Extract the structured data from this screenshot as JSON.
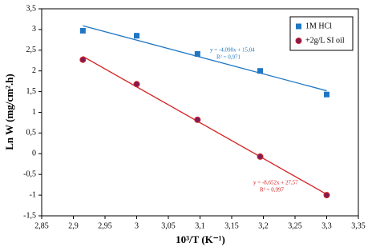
{
  "chart_data": {
    "type": "scatter",
    "x_label": "10³/T (K⁻¹)",
    "y_label": "Ln W (mg/cm².h)",
    "xlim": [
      2.85,
      3.35
    ],
    "xticks": [
      {
        "value": 2.85,
        "label": "2,85"
      },
      {
        "value": 2.9,
        "label": "2,9"
      },
      {
        "value": 2.95,
        "label": "2,95"
      },
      3,
      {
        "value": 3.05,
        "label": "3,05"
      },
      {
        "value": 3.1,
        "label": "3,1"
      },
      {
        "value": 3.15,
        "label": "3,15"
      },
      {
        "value": 3.2,
        "label": "3,2"
      },
      {
        "value": 3.25,
        "label": "3,25"
      },
      {
        "value": 3.3,
        "label": "3,3"
      },
      {
        "value": 3.35,
        "label": "3,35"
      }
    ],
    "ylim": [
      -1.5,
      3.5
    ],
    "yticks": [
      {
        "value": -1.5,
        "label": "-1,5"
      },
      -1,
      {
        "value": -0.5,
        "label": "-0,5"
      },
      0,
      {
        "value": 0.5,
        "label": "0,5"
      },
      1,
      {
        "value": 1.5,
        "label": "1,5"
      },
      2,
      {
        "value": 2.5,
        "label": "2,5"
      },
      3,
      {
        "value": 3.5,
        "label": "3,5"
      }
    ],
    "grid": false,
    "legend": "upper right",
    "series": [
      {
        "name": "1M HCl",
        "color": "#1f77c4",
        "marker": "square",
        "x": [
          2.915,
          3.0,
          3.096,
          3.195,
          3.3
        ],
        "values": [
          2.97,
          2.85,
          2.41,
          2.0,
          1.43
        ],
        "trendline": {
          "x": [
            2.915,
            3.3
          ],
          "values": [
            3.09,
            1.52
          ]
        },
        "annotation": [
          "y = -4,098x + 15,04",
          "R² = 0,971"
        ]
      },
      {
        "name": "+2g/L SI oil",
        "color": "#d62020",
        "marker": "circle",
        "x": [
          2.915,
          3.0,
          3.096,
          3.195,
          3.3
        ],
        "values": [
          2.27,
          1.68,
          0.82,
          -0.07,
          -1.0
        ],
        "trendline": {
          "x": [
            2.915,
            3.3
          ],
          "values": [
            2.35,
            -0.98
          ]
        },
        "annotation": [
          "y = -8,652x + 27,57",
          "R² = 0,997"
        ]
      }
    ]
  }
}
